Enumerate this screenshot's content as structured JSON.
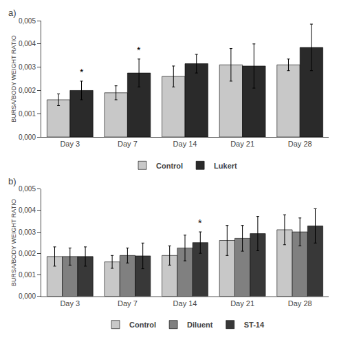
{
  "chart_data": [
    {
      "type": "bar",
      "title": "a)",
      "categories": [
        "Day 3",
        "Day 7",
        "Day 14",
        "Day 21",
        "Day 28"
      ],
      "series": [
        {
          "name": "Control",
          "color": "#c8c8c8",
          "values": [
            0.0016,
            0.0019,
            0.0026,
            0.0031,
            0.0031
          ],
          "errors": [
            0.00025,
            0.0003,
            0.00045,
            0.0007,
            0.00025
          ]
        },
        {
          "name": "Lukert",
          "color": "#2a2a2a",
          "values": [
            0.002,
            0.00275,
            0.00315,
            0.00305,
            0.00385
          ],
          "errors": [
            0.0004,
            0.0006,
            0.0004,
            0.00095,
            0.001
          ]
        }
      ],
      "annotations": [
        {
          "text": "*",
          "category": "Day 3",
          "series": "Lukert",
          "y": 0.00245
        },
        {
          "text": "*",
          "category": "Day 7",
          "series": "Lukert",
          "y": 0.0034
        }
      ],
      "ylabel": "BURSA/BODY WEIGHT RATIO",
      "ylim": [
        0,
        0.005
      ],
      "yticks": [
        {
          "value": 0.0,
          "label": "0,000"
        },
        {
          "value": 0.001,
          "label": "0,001"
        },
        {
          "value": 0.002,
          "label": "0,002"
        },
        {
          "value": 0.003,
          "label": "0,003"
        },
        {
          "value": 0.004,
          "label": "0,004"
        },
        {
          "value": 0.005,
          "label": "0,005"
        }
      ],
      "grid": false,
      "legend": "bottom"
    },
    {
      "type": "bar",
      "title": "b)",
      "categories": [
        "Day 3",
        "Day 7",
        "Day 14",
        "Day 21",
        "Day 28"
      ],
      "series": [
        {
          "name": "Control",
          "color": "#c8c8c8",
          "values": [
            0.00185,
            0.0016,
            0.0019,
            0.0026,
            0.0031
          ],
          "errors": [
            0.00045,
            0.0003,
            0.00045,
            0.0007,
            0.0007
          ]
        },
        {
          "name": "Diluent",
          "color": "#808080",
          "values": [
            0.00185,
            0.0019,
            0.00225,
            0.0027,
            0.003
          ],
          "errors": [
            0.0004,
            0.00035,
            0.0006,
            0.0006,
            0.00065
          ]
        },
        {
          "name": "ST-14",
          "color": "#383838",
          "values": [
            0.00185,
            0.00188,
            0.0025,
            0.00292,
            0.00328
          ],
          "errors": [
            0.00045,
            0.0006,
            0.0005,
            0.0008,
            0.0008
          ]
        }
      ],
      "annotations": [
        {
          "text": "*",
          "category": "Day 14",
          "series": "ST-14",
          "y": 0.00305
        }
      ],
      "ylabel": "BURSA/BODY WEIGHT RATIO",
      "ylim": [
        0,
        0.005
      ],
      "yticks": [
        {
          "value": 0.0,
          "label": "0,000"
        },
        {
          "value": 0.001,
          "label": "0,001"
        },
        {
          "value": 0.002,
          "label": "0,002"
        },
        {
          "value": 0.003,
          "label": "0,003"
        },
        {
          "value": 0.004,
          "label": "0,004"
        },
        {
          "value": 0.005,
          "label": "0,005"
        }
      ],
      "grid": false,
      "legend": "bottom"
    }
  ]
}
